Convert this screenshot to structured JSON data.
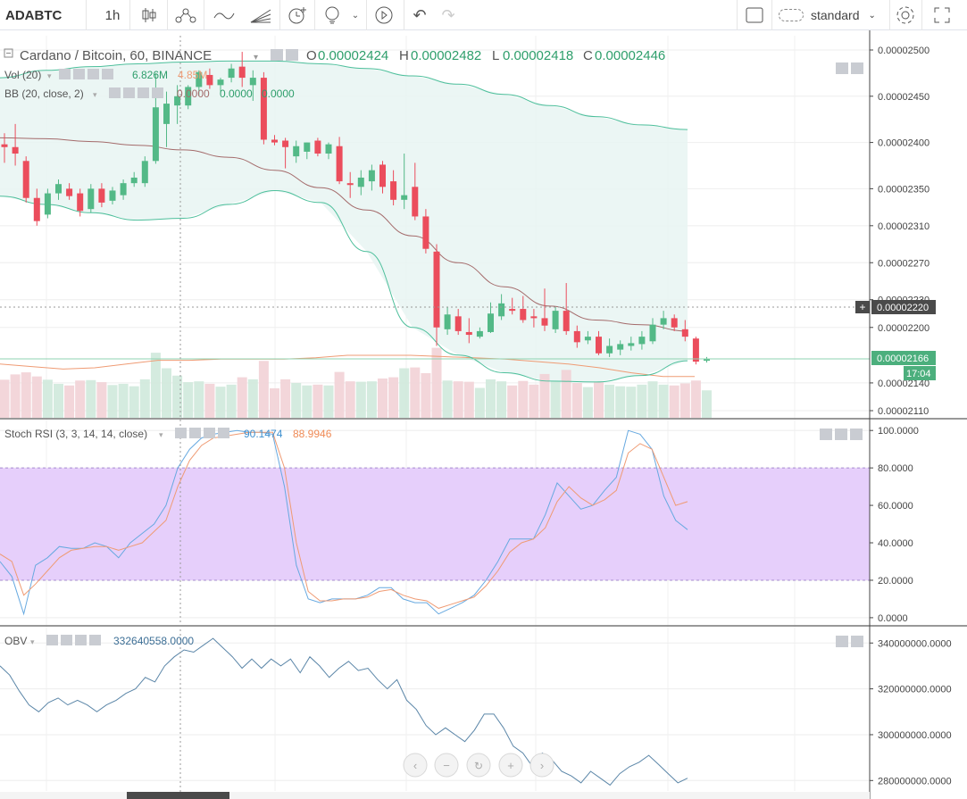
{
  "toolbar": {
    "symbol": "ADABTC",
    "interval": "1h",
    "chart_style": "standard",
    "icons": [
      "candles-icon",
      "indicators-icon",
      "line-tool-icon",
      "fib-icon",
      "alert-icon",
      "idea-icon",
      "replay-icon",
      "undo-icon",
      "redo-icon",
      "layout-icon",
      "cloud-icon",
      "settings-icon",
      "fullscreen-icon"
    ]
  },
  "legend": {
    "main_title": "Cardano / Bitcoin, 60, BINANCE",
    "o_label": "O",
    "o_value": "0.00002424",
    "h_label": "H",
    "h_value": "0.00002482",
    "l_label": "L",
    "l_value": "0.00002418",
    "c_label": "C",
    "c_value": "0.00002446",
    "vol_label": "Vol (20)",
    "vol_v1": "6.826M",
    "vol_v2": "4.85M",
    "bb_label": "BB (20, close, 2)",
    "bb_v1": "0.0000",
    "bb_v2": "0.0000",
    "bb_v3": "0.0000",
    "stoch_label": "Stoch RSI (3, 3, 14, 14, close)",
    "stoch_k": "90.1474",
    "stoch_d": "88.9946",
    "obv_label": "OBV",
    "obv_value": "332640558.0000"
  },
  "price_badges": {
    "crosshair": "0.00002220",
    "last": "0.00002166",
    "countdown": "17:04"
  },
  "colors": {
    "up": "#53b987",
    "down": "#eb4d5c",
    "bb_band": "#4dbf9b",
    "bb_basis": "#a46b6b",
    "bb_fill": "#e8f5f2",
    "stoch_k": "#67a9e0",
    "stoch_d": "#ef9b74",
    "stoch_zone": "#e6cffb",
    "obv": "#5b86a8",
    "last_price": "#4caf7d"
  },
  "chart_data": [
    {
      "type": "candlestick",
      "title": "Cardano / Bitcoin, 60, BINANCE",
      "yticks": [
        "0.00002500",
        "0.00002450",
        "0.00002400",
        "0.00002350",
        "0.00002310",
        "0.00002270",
        "0.00002230",
        "0.00002200",
        "0.00002140",
        "0.00002110"
      ],
      "ylim": [
        2.104e-05,
        2.51e-05
      ],
      "candles": [
        {
          "o": 2.398e-05,
          "h": 2.41e-05,
          "l": 2.378e-05,
          "c": 2.395e-05
        },
        {
          "o": 2.395e-05,
          "h": 2.42e-05,
          "l": 2.375e-05,
          "c": 2.388e-05
        },
        {
          "o": 2.38e-05,
          "h": 2.385e-05,
          "l": 2.335e-05,
          "c": 2.34e-05
        },
        {
          "o": 2.34e-05,
          "h": 2.35e-05,
          "l": 2.31e-05,
          "c": 2.315e-05
        },
        {
          "o": 2.322e-05,
          "h": 2.35e-05,
          "l": 2.318e-05,
          "c": 2.345e-05
        },
        {
          "o": 2.345e-05,
          "h": 2.36e-05,
          "l": 2.338e-05,
          "c": 2.355e-05
        },
        {
          "o": 2.35e-05,
          "h": 2.356e-05,
          "l": 2.338e-05,
          "c": 2.342e-05
        },
        {
          "o": 2.345e-05,
          "h": 2.35e-05,
          "l": 2.32e-05,
          "c": 2.326e-05
        },
        {
          "o": 2.328e-05,
          "h": 2.355e-05,
          "l": 2.324e-05,
          "c": 2.35e-05
        },
        {
          "o": 2.35e-05,
          "h": 2.356e-05,
          "l": 2.33e-05,
          "c": 2.335e-05
        },
        {
          "o": 2.337e-05,
          "h": 2.352e-05,
          "l": 2.333e-05,
          "c": 2.348e-05
        },
        {
          "o": 2.343e-05,
          "h": 2.36e-05,
          "l": 2.338e-05,
          "c": 2.356e-05
        },
        {
          "o": 2.356e-05,
          "h": 2.368e-05,
          "l": 2.352e-05,
          "c": 2.362e-05
        },
        {
          "o": 2.356e-05,
          "h": 2.385e-05,
          "l": 2.352e-05,
          "c": 2.38e-05
        },
        {
          "o": 2.38e-05,
          "h": 2.475e-05,
          "l": 2.377e-05,
          "c": 2.438e-05
        },
        {
          "o": 2.42e-05,
          "h": 2.455e-05,
          "l": 2.395e-05,
          "c": 2.442e-05
        },
        {
          "o": 2.44e-05,
          "h": 2.462e-05,
          "l": 2.42e-05,
          "c": 2.45e-05
        },
        {
          "o": 2.44e-05,
          "h": 2.462e-05,
          "l": 2.436e-05,
          "c": 2.46e-05
        },
        {
          "o": 2.46e-05,
          "h": 2.478e-05,
          "l": 2.45e-05,
          "c": 2.476e-05
        },
        {
          "o": 2.473e-05,
          "h": 2.48e-05,
          "l": 2.458e-05,
          "c": 2.462e-05
        },
        {
          "o": 2.462e-05,
          "h": 2.47e-05,
          "l": 2.455e-05,
          "c": 2.468e-05
        },
        {
          "o": 2.47e-05,
          "h": 2.485e-05,
          "l": 2.465e-05,
          "c": 2.48e-05
        },
        {
          "o": 2.482e-05,
          "h": 2.498e-05,
          "l": 2.46e-05,
          "c": 2.47e-05
        },
        {
          "o": 2.462e-05,
          "h": 2.478e-05,
          "l": 2.445e-05,
          "c": 2.47e-05
        },
        {
          "o": 2.47e-05,
          "h": 2.476e-05,
          "l": 2.398e-05,
          "c": 2.403e-05
        },
        {
          "o": 2.403e-05,
          "h": 2.408e-05,
          "l": 2.397e-05,
          "c": 2.4e-05
        },
        {
          "o": 2.402e-05,
          "h": 2.405e-05,
          "l": 2.372e-05,
          "c": 2.395e-05
        },
        {
          "o": 2.385e-05,
          "h": 2.402e-05,
          "l": 2.378e-05,
          "c": 2.396e-05
        },
        {
          "o": 2.39e-05,
          "h": 2.4e-05,
          "l": 2.382e-05,
          "c": 2.4e-05
        },
        {
          "o": 2.402e-05,
          "h": 2.405e-05,
          "l": 2.385e-05,
          "c": 2.388e-05
        },
        {
          "o": 2.388e-05,
          "h": 2.4e-05,
          "l": 2.382e-05,
          "c": 2.398e-05
        },
        {
          "o": 2.396e-05,
          "h": 2.406e-05,
          "l": 2.355e-05,
          "c": 2.358e-05
        },
        {
          "o": 2.356e-05,
          "h": 2.368e-05,
          "l": 2.34e-05,
          "c": 2.354e-05
        },
        {
          "o": 2.352e-05,
          "h": 2.37e-05,
          "l": 2.343e-05,
          "c": 2.362e-05
        },
        {
          "o": 2.358e-05,
          "h": 2.376e-05,
          "l": 2.348e-05,
          "c": 2.37e-05
        },
        {
          "o": 2.376e-05,
          "h": 2.38e-05,
          "l": 2.345e-05,
          "c": 2.352e-05
        },
        {
          "o": 2.358e-05,
          "h": 2.37e-05,
          "l": 2.332e-05,
          "c": 2.338e-05
        },
        {
          "o": 2.338e-05,
          "h": 2.388e-05,
          "l": 2.328e-05,
          "c": 2.343e-05
        },
        {
          "o": 2.352e-05,
          "h": 2.378e-05,
          "l": 2.316e-05,
          "c": 2.32e-05
        },
        {
          "o": 2.32e-05,
          "h": 2.328e-05,
          "l": 2.28e-05,
          "c": 2.285e-05
        },
        {
          "o": 2.282e-05,
          "h": 2.29e-05,
          "l": 2.18e-05,
          "c": 2.2e-05
        },
        {
          "o": 2.198e-05,
          "h": 2.222e-05,
          "l": 2.192e-05,
          "c": 2.214e-05
        },
        {
          "o": 2.212e-05,
          "h": 2.22e-05,
          "l": 2.192e-05,
          "c": 2.196e-05
        },
        {
          "o": 2.195e-05,
          "h": 2.21e-05,
          "l": 2.183e-05,
          "c": 2.192e-05
        },
        {
          "o": 2.19e-05,
          "h": 2.2e-05,
          "l": 2.188e-05,
          "c": 2.196e-05
        },
        {
          "o": 2.195e-05,
          "h": 2.227e-05,
          "l": 2.194e-05,
          "c": 2.215e-05
        },
        {
          "o": 2.212e-05,
          "h": 2.236e-05,
          "l": 2.208e-05,
          "c": 2.226e-05
        },
        {
          "o": 2.22e-05,
          "h": 2.232e-05,
          "l": 2.214e-05,
          "c": 2.218e-05
        },
        {
          "o": 2.22e-05,
          "h": 2.234e-05,
          "l": 2.205e-05,
          "c": 2.208e-05
        },
        {
          "o": 2.212e-05,
          "h": 2.22e-05,
          "l": 2.2e-05,
          "c": 2.21e-05
        },
        {
          "o": 2.21e-05,
          "h": 2.242e-05,
          "l": 2.196e-05,
          "c": 2.202e-05
        },
        {
          "o": 2.198e-05,
          "h": 2.222e-05,
          "l": 2.194e-05,
          "c": 2.218e-05
        },
        {
          "o": 2.218e-05,
          "h": 2.248e-05,
          "l": 2.192e-05,
          "c": 2.196e-05
        },
        {
          "o": 2.196e-05,
          "h": 2.202e-05,
          "l": 2.178e-05,
          "c": 2.184e-05
        },
        {
          "o": 2.186e-05,
          "h": 2.196e-05,
          "l": 2.182e-05,
          "c": 2.19e-05
        },
        {
          "o": 2.19e-05,
          "h": 2.196e-05,
          "l": 2.17e-05,
          "c": 2.172e-05
        },
        {
          "o": 2.172e-05,
          "h": 2.188e-05,
          "l": 2.168e-05,
          "c": 2.18e-05
        },
        {
          "o": 2.176e-05,
          "h": 2.186e-05,
          "l": 2.17e-05,
          "c": 2.182e-05
        },
        {
          "o": 2.18e-05,
          "h": 2.19e-05,
          "l": 2.175e-05,
          "c": 2.183e-05
        },
        {
          "o": 2.182e-05,
          "h": 2.196e-05,
          "l": 2.176e-05,
          "c": 2.19e-05
        },
        {
          "o": 2.185e-05,
          "h": 2.21e-05,
          "l": 2.182e-05,
          "c": 2.203e-05
        },
        {
          "o": 2.203e-05,
          "h": 2.218e-05,
          "l": 2.198e-05,
          "c": 2.21e-05
        },
        {
          "o": 2.21e-05,
          "h": 2.214e-05,
          "l": 2.196e-05,
          "c": 2.2e-05
        },
        {
          "o": 2.198e-05,
          "h": 2.208e-05,
          "l": 2.185e-05,
          "c": 2.19e-05
        },
        {
          "o": 2.188e-05,
          "h": 2.19e-05,
          "l": 2.16e-05,
          "c": 2.163e-05
        },
        {
          "o": 2.164e-05,
          "h": 2.168e-05,
          "l": 2.162e-05,
          "c": 2.166e-05
        }
      ],
      "bb_upper": [
        2.47e-05,
        2.478e-05,
        2.482e-05,
        2.485e-05,
        2.487e-05,
        2.488e-05,
        2.488e-05,
        2.485e-05,
        2.48e-05,
        2.472e-05,
        2.463e-05,
        2.452e-05,
        2.44e-05,
        2.428e-05,
        2.419e-05,
        2.414e-05
      ],
      "bb_basis": [
        2.405e-05,
        2.404e-05,
        2.401e-05,
        2.397e-05,
        2.392e-05,
        2.384e-05,
        2.37e-05,
        2.351e-05,
        2.327e-05,
        2.299e-05,
        2.27e-05,
        2.244e-05,
        2.223e-05,
        2.208e-05,
        2.203e-05,
        2.196e-05
      ],
      "bb_lower": [
        2.342e-05,
        2.333e-05,
        2.324e-05,
        2.316e-05,
        2.318e-05,
        2.333e-05,
        2.348e-05,
        2.335e-05,
        2.282e-05,
        2.2e-05,
        2.17e-05,
        2.151e-05,
        2.142e-05,
        2.141e-05,
        2.148e-05,
        2.164e-05
      ],
      "volume_ma": [
        0.43,
        0.41,
        0.39,
        0.4,
        0.43,
        0.46,
        0.46,
        0.47,
        0.47,
        0.47,
        0.48,
        0.5,
        0.5,
        0.5,
        0.49,
        0.48,
        0.47,
        0.45,
        0.43,
        0.4,
        0.36,
        0.33,
        0.33
      ]
    },
    {
      "type": "line",
      "title": "Stoch RSI (3, 3, 14, 14, close)",
      "yticks": [
        "100.0000",
        "80.0000",
        "60.0000",
        "40.0000",
        "20.0000",
        "0.0000"
      ],
      "ylim": [
        -1,
        102
      ],
      "band": [
        20,
        80
      ],
      "series": [
        {
          "name": "K",
          "values": [
            30,
            22,
            2,
            28,
            32,
            38,
            37,
            37,
            40,
            38,
            32,
            40,
            45,
            50,
            60,
            80,
            90,
            96,
            98,
            99,
            100,
            99,
            99,
            98,
            70,
            28,
            10,
            8,
            10,
            10,
            10,
            12,
            16,
            16,
            10,
            8,
            8,
            2,
            5,
            8,
            12,
            20,
            30,
            42,
            42,
            42,
            55,
            72,
            65,
            58,
            60,
            68,
            75,
            100,
            98,
            90,
            65,
            52,
            47
          ]
        },
        {
          "name": "D",
          "values": [
            34,
            30,
            12,
            18,
            25,
            32,
            36,
            37,
            38,
            38,
            36,
            38,
            40,
            46,
            52,
            70,
            84,
            92,
            96,
            97,
            98,
            99,
            99,
            99,
            80,
            40,
            14,
            9,
            9,
            10,
            10,
            11,
            14,
            15,
            12,
            10,
            9,
            5,
            7,
            9,
            11,
            17,
            25,
            35,
            40,
            42,
            48,
            62,
            70,
            64,
            60,
            63,
            68,
            88,
            93,
            90,
            75,
            60,
            62
          ]
        }
      ]
    },
    {
      "type": "line",
      "title": "OBV",
      "yticks": [
        "340000000.0000",
        "320000000.0000",
        "300000000.0000",
        "280000000.0000"
      ],
      "ylim": [
        277000000,
        344000000
      ],
      "series": [
        {
          "name": "OBV",
          "values": [
            330000000,
            326000000,
            319000000,
            313000000,
            310000000,
            314000000,
            316000000,
            313000000,
            315000000,
            313000000,
            310000000,
            313000000,
            315000000,
            318000000,
            320000000,
            325000000,
            323000000,
            330000000,
            334000000,
            337000000,
            336000000,
            339000000,
            342000000,
            338000000,
            334000000,
            329000000,
            333000000,
            329000000,
            333000000,
            330000000,
            333000000,
            327000000,
            334000000,
            330000000,
            325000000,
            329000000,
            332000000,
            328000000,
            329000000,
            324000000,
            320000000,
            324000000,
            315000000,
            311000000,
            304000000,
            300000000,
            303000000,
            300000000,
            297000000,
            302000000,
            309000000,
            309000000,
            303000000,
            295000000,
            292000000,
            286000000,
            292000000,
            289000000,
            284000000,
            282000000,
            279000000,
            284000000,
            281000000,
            278000000,
            283000000,
            286000000,
            288000000,
            291000000,
            287000000,
            283000000,
            279000000,
            281000000
          ]
        }
      ]
    }
  ]
}
